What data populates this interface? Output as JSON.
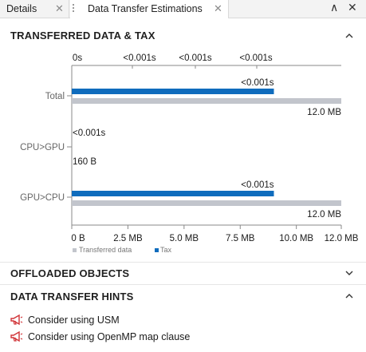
{
  "tabs": [
    {
      "label": "Details",
      "close": "✕"
    },
    {
      "label": "Data Transfer Estimations",
      "close": "✕"
    }
  ],
  "window_controls": {
    "collapse": "∧",
    "close": "✕"
  },
  "sections": {
    "transferred": "TRANSFERRED DATA & TAX",
    "offloaded": "OFFLOADED OBJECTS",
    "hints": "DATA TRANSFER HINTS"
  },
  "chart_data": {
    "type": "bar",
    "orientation": "horizontal",
    "categories": [
      "Total",
      "CPU>GPU",
      "GPU>CPU"
    ],
    "series": [
      {
        "name": "Transferred data",
        "color": "#c2c5cc",
        "values_mb": [
          12.0,
          0.00016,
          12.0
        ],
        "labels": [
          "12.0 MB",
          "160 B",
          "12.0 MB"
        ]
      },
      {
        "name": "Tax",
        "color": "#0f6cbd",
        "values_s": [
          0.00075,
          0.0,
          0.00075
        ],
        "labels": [
          "<0.001s",
          "<0.001s",
          "<0.001s"
        ]
      }
    ],
    "x_bottom": {
      "ticks": [
        "0 B",
        "2.5 MB",
        "5.0 MB",
        "7.5 MB",
        "10.0 MB",
        "12.0 MB"
      ],
      "range_mb": [
        0,
        12.0
      ]
    },
    "x_top": {
      "ticks": [
        "0s",
        "<0.001s",
        "<0.001s",
        "<0.001s"
      ]
    },
    "legend_position": "bottom-left"
  },
  "hints": [
    {
      "icon": "megaphone-icon",
      "text": "Consider using USM"
    },
    {
      "icon": "megaphone-icon",
      "text": "Consider using OpenMP map clause"
    }
  ]
}
